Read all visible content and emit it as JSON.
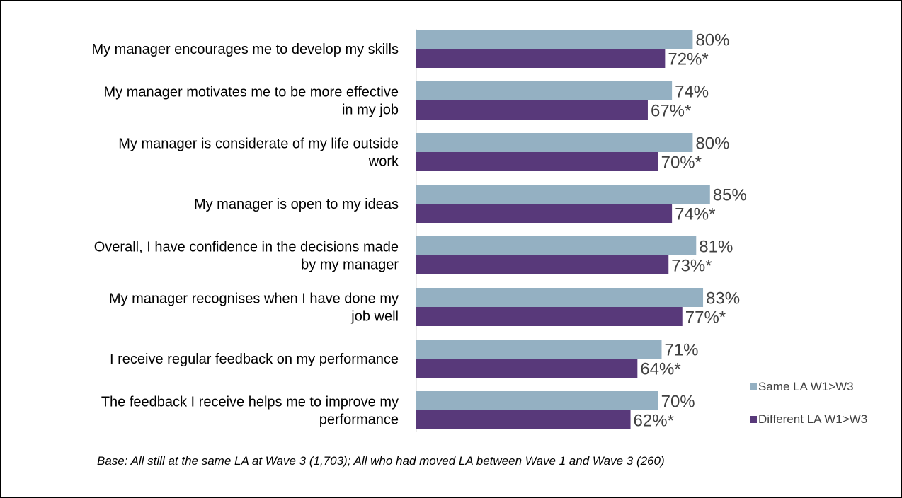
{
  "chart_data": {
    "type": "bar",
    "orientation": "horizontal",
    "categories": [
      [
        "My manager encourages me to develop my skills"
      ],
      [
        "My manager motivates me to be more effective",
        "in my job"
      ],
      [
        "My manager is considerate of my life outside",
        "work"
      ],
      [
        "My manager is open to my ideas"
      ],
      [
        "Overall, I have confidence in the decisions made",
        "by my manager"
      ],
      [
        "My manager recognises when I have done my",
        "job well"
      ],
      [
        "I receive regular feedback on my performance"
      ],
      [
        "The feedback I receive helps me to improve my",
        "performance"
      ]
    ],
    "series": [
      {
        "name": "Same LA W1>W3",
        "color": "#94B0C2",
        "values": [
          80,
          74,
          80,
          85,
          81,
          83,
          71,
          70
        ],
        "labels": [
          "80%",
          "74%",
          "80%",
          "85%",
          "81%",
          "83%",
          "71%",
          "70%"
        ]
      },
      {
        "name": "Different LA W1>W3",
        "color": "#58397A",
        "values": [
          72,
          67,
          70,
          74,
          73,
          77,
          64,
          62
        ],
        "labels": [
          "72%*",
          "67%*",
          "70%*",
          "74%*",
          "73%*",
          "77%*",
          "64%*",
          "62%*"
        ]
      }
    ],
    "xlim": [
      0,
      100
    ],
    "legend_position": "bottom-right",
    "grid": false
  },
  "footnote": "Base: All still at the same LA at Wave 3 (1,703); All who had moved LA between Wave 1 and Wave 3 (260)"
}
